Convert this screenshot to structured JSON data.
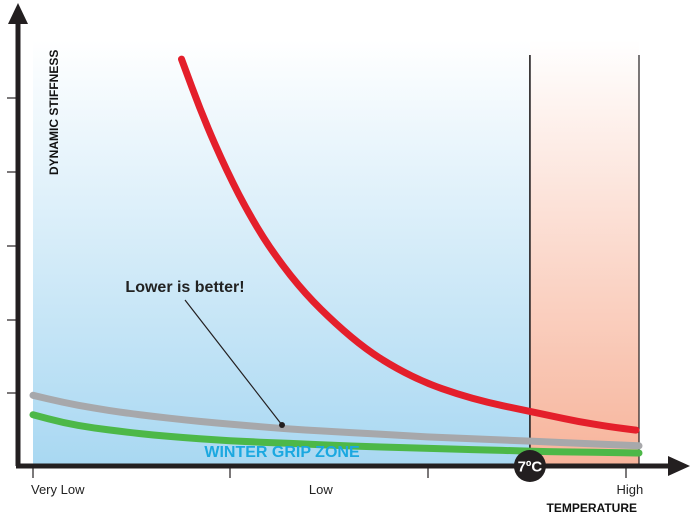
{
  "chart_data": {
    "type": "line",
    "ylabel": "DYNAMIC STIFFNESS",
    "xlabel": "TEMPERATURE",
    "x_tick_labels": [
      {
        "label": "Very Low",
        "x": 0
      },
      {
        "label": "Low",
        "x": 0.475
      },
      {
        "label": "High",
        "x": 0.985
      }
    ],
    "xlim": [
      0,
      1
    ],
    "ylim": [
      0,
      1
    ],
    "threshold": {
      "label": "7ºC",
      "x": 0.82
    },
    "annotation": {
      "text": "Lower is better!",
      "target_series": "green",
      "target_x": 0.41
    },
    "zone_label": "WINTER GRIP ZONE",
    "colors": {
      "red": "#e41f2b",
      "gray": "#a7a8ab",
      "green": "#4db848",
      "zone_text": "#1ba8e0",
      "cold_bg_top": "#ffffff",
      "cold_bg_bottom": "#a9d8f2",
      "warm_bg_top": "#ffffff",
      "warm_bg_bottom": "#f7b49b",
      "axis": "#231f20"
    },
    "series": [
      {
        "name": "red",
        "color": "#e41f2b",
        "points": [
          [
            0.245,
            0.955
          ],
          [
            0.28,
            0.82
          ],
          [
            0.32,
            0.69
          ],
          [
            0.36,
            0.58
          ],
          [
            0.4,
            0.49
          ],
          [
            0.45,
            0.4
          ],
          [
            0.5,
            0.33
          ],
          [
            0.55,
            0.27
          ],
          [
            0.6,
            0.225
          ],
          [
            0.65,
            0.19
          ],
          [
            0.7,
            0.165
          ],
          [
            0.75,
            0.145
          ],
          [
            0.8,
            0.13
          ],
          [
            0.85,
            0.115
          ],
          [
            0.9,
            0.1
          ],
          [
            0.95,
            0.088
          ],
          [
            0.995,
            0.08
          ]
        ]
      },
      {
        "name": "gray",
        "color": "#a7a8ab",
        "points": [
          [
            0,
            0.162
          ],
          [
            0.05,
            0.145
          ],
          [
            0.1,
            0.132
          ],
          [
            0.15,
            0.121
          ],
          [
            0.2,
            0.112
          ],
          [
            0.25,
            0.104
          ],
          [
            0.3,
            0.097
          ],
          [
            0.35,
            0.091
          ],
          [
            0.4,
            0.085
          ],
          [
            0.45,
            0.08
          ],
          [
            0.5,
            0.076
          ],
          [
            0.55,
            0.072
          ],
          [
            0.6,
            0.068
          ],
          [
            0.65,
            0.064
          ],
          [
            0.7,
            0.061
          ],
          [
            0.75,
            0.058
          ],
          [
            0.8,
            0.055
          ],
          [
            0.85,
            0.052
          ],
          [
            0.9,
            0.049
          ],
          [
            0.95,
            0.046
          ],
          [
            1.0,
            0.043
          ]
        ]
      },
      {
        "name": "green",
        "color": "#4db848",
        "points": [
          [
            0,
            0.116
          ],
          [
            0.05,
            0.097
          ],
          [
            0.1,
            0.085
          ],
          [
            0.15,
            0.076
          ],
          [
            0.2,
            0.068
          ],
          [
            0.25,
            0.062
          ],
          [
            0.3,
            0.057
          ],
          [
            0.35,
            0.053
          ],
          [
            0.4,
            0.05
          ],
          [
            0.45,
            0.047
          ],
          [
            0.5,
            0.044
          ],
          [
            0.55,
            0.041
          ],
          [
            0.6,
            0.039
          ],
          [
            0.65,
            0.037
          ],
          [
            0.7,
            0.035
          ],
          [
            0.75,
            0.033
          ],
          [
            0.8,
            0.031
          ],
          [
            0.85,
            0.029
          ],
          [
            0.9,
            0.028
          ],
          [
            0.95,
            0.027
          ],
          [
            1.0,
            0.026
          ]
        ]
      }
    ]
  }
}
